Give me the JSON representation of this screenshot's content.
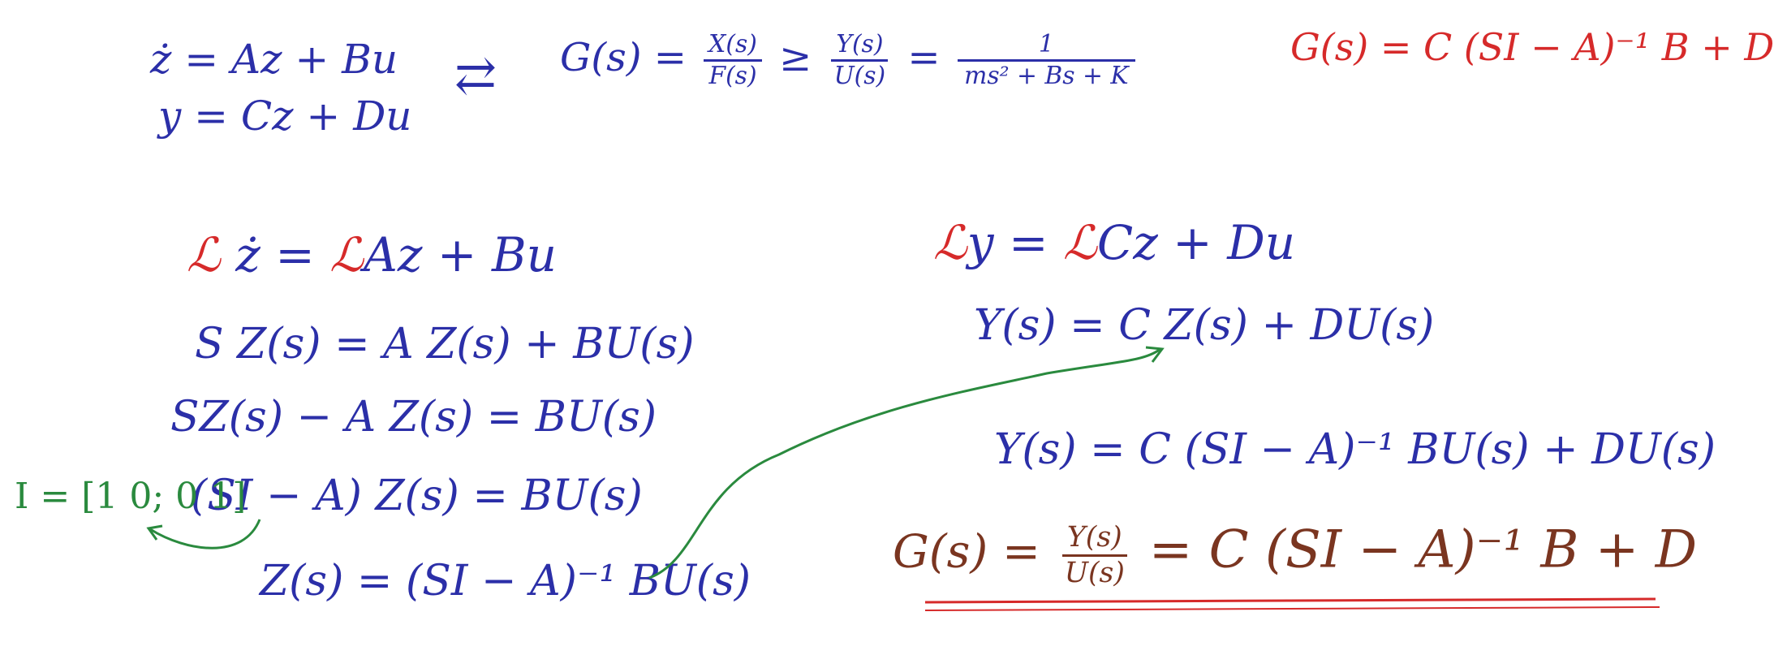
{
  "top": {
    "state_eq": "ż = Az + Bu",
    "output_eq": "y = Cz + Du",
    "arrow": "⇄",
    "g_lhs": "G(s) =",
    "x_num": "X(s)",
    "f_den": "F(s)",
    "y_num": "Y(s)",
    "u_den": "U(s)",
    "one": "1",
    "msk": "ms² + Bs + K",
    "g_red": "G(s) = C (SI − A)⁻¹ B + D"
  },
  "left": {
    "l1_L1": "ℒ",
    "l1_mid": "ż =",
    "l1_L2": "ℒ",
    "l1_rhs": "Az + Bu",
    "l2": "S Z(s)  =  A Z(s) + BU(s)",
    "l3": "SZ(s) − A Z(s)  = BU(s)",
    "l4": "(SI − A) Z(s) = BU(s)",
    "l5": "Z(s) = (SI − A)⁻¹ BU(s)",
    "identity": "I = [1 0; 0 1]"
  },
  "right": {
    "r1_L1": "ℒ",
    "r1_mid": "y =",
    "r1_L2": "ℒ",
    "r1_rhs": "Cz + Du",
    "r2": "Y(s) = C Z(s) + DU(s)",
    "r3": "Y(s) = C (SI − A)⁻¹ BU(s) + DU(s)",
    "final_lhs": "G(s) =",
    "final_num": "Y(s)",
    "final_den": "U(s)",
    "final_rhs": "=   C (SI − A)⁻¹ B + D"
  },
  "colors": {
    "blue": "#2b2fa8",
    "red": "#d62a2a",
    "green": "#2a8a3e",
    "brown": "#7a3520"
  }
}
